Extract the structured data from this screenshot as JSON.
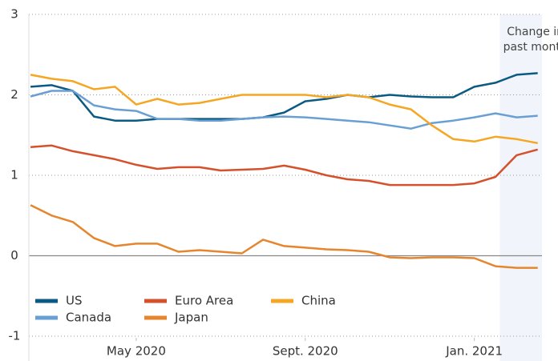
{
  "chart_data": {
    "type": "line",
    "annotation": [
      "Change in",
      "past month"
    ],
    "highlight": [
      12.6,
      13.6
    ],
    "x": [
      1.5,
      2,
      2.5,
      3,
      3.5,
      4,
      4.5,
      5,
      5.5,
      6,
      6.5,
      7,
      7.5,
      8,
      8.5,
      9,
      9.5,
      10,
      10.5,
      11,
      11.5,
      12,
      12.5,
      13,
      13.5
    ],
    "xlim": [
      1.46,
      13.6
    ],
    "xticks": [
      {
        "value": 4,
        "label": "May 2020"
      },
      {
        "value": 8,
        "label": "Sept. 2020"
      },
      {
        "value": 12,
        "label": "Jan. 2021"
      }
    ],
    "ylim": [
      -1,
      3
    ],
    "yticks": [
      -1,
      0,
      1,
      2,
      3
    ],
    "grid": true,
    "legend": "bottom-left",
    "series": [
      {
        "name": "US",
        "color": "#0b5a84",
        "values": [
          2.1,
          2.12,
          2.05,
          1.73,
          1.68,
          1.68,
          1.7,
          1.7,
          1.7,
          1.7,
          1.7,
          1.72,
          1.78,
          1.92,
          1.95,
          2.0,
          1.97,
          2.0,
          1.98,
          1.97,
          1.97,
          2.1,
          2.15,
          2.25,
          2.27
        ]
      },
      {
        "name": "Canada",
        "color": "#6a9fd4",
        "values": [
          1.98,
          2.05,
          2.05,
          1.87,
          1.82,
          1.8,
          1.7,
          1.7,
          1.68,
          1.68,
          1.7,
          1.72,
          1.73,
          1.72,
          1.7,
          1.68,
          1.66,
          1.62,
          1.58,
          1.65,
          1.68,
          1.72,
          1.77,
          1.72,
          1.74
        ]
      },
      {
        "name": "Euro Area",
        "color": "#d5512c",
        "values": [
          1.35,
          1.37,
          1.3,
          1.25,
          1.2,
          1.13,
          1.08,
          1.1,
          1.1,
          1.06,
          1.07,
          1.08,
          1.12,
          1.07,
          1.0,
          0.95,
          0.93,
          0.88,
          0.88,
          0.88,
          0.88,
          0.9,
          0.98,
          1.25,
          1.32
        ]
      },
      {
        "name": "Japan",
        "color": "#e5862e",
        "values": [
          0.63,
          0.5,
          0.42,
          0.22,
          0.12,
          0.15,
          0.15,
          0.05,
          0.07,
          0.05,
          0.03,
          0.2,
          0.12,
          0.1,
          0.08,
          0.07,
          0.05,
          -0.02,
          -0.03,
          -0.02,
          -0.02,
          -0.03,
          -0.13,
          -0.15,
          -0.15
        ]
      },
      {
        "name": "China",
        "color": "#f5a623",
        "values": [
          2.25,
          2.2,
          2.17,
          2.07,
          2.1,
          1.88,
          1.95,
          1.88,
          1.9,
          1.95,
          2.0,
          2.0,
          2.0,
          2.0,
          1.97,
          2.0,
          1.97,
          1.88,
          1.82,
          1.62,
          1.45,
          1.42,
          1.48,
          1.45,
          1.4
        ]
      }
    ]
  }
}
